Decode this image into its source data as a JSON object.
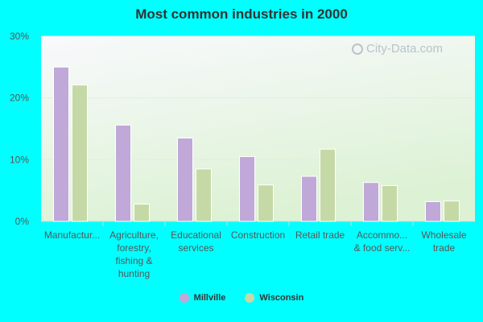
{
  "chart_data": {
    "type": "bar",
    "title": "Most common industries in 2000",
    "categories": [
      [
        "Manufactur..."
      ],
      [
        "Agriculture,",
        "forestry,",
        "fishing &",
        "hunting"
      ],
      [
        "Educational",
        "services"
      ],
      [
        "Construction"
      ],
      [
        "Retail trade"
      ],
      [
        "Accommo...",
        "& food serv..."
      ],
      [
        "Wholesale",
        "trade"
      ]
    ],
    "series": [
      {
        "name": "Millville",
        "values": [
          25.0,
          15.6,
          13.5,
          10.5,
          7.3,
          6.3,
          3.2
        ],
        "color": "#c0a8d8"
      },
      {
        "name": "Wisconsin",
        "values": [
          22.1,
          2.8,
          8.5,
          5.9,
          11.7,
          5.8,
          3.3
        ],
        "color": "#c5d9a6"
      }
    ],
    "ylim": [
      0,
      30
    ],
    "yticks": [
      "0%",
      "10%",
      "20%",
      "30%"
    ],
    "ytick_values": [
      0,
      10,
      20,
      30
    ],
    "grid": true,
    "legend_position": "bottom-center",
    "xlabel": "",
    "ylabel": ""
  },
  "watermark": {
    "text": "City-Data.com",
    "icon": "magnifier-icon"
  },
  "colors": {
    "background": "#00ffff",
    "plot_top": "#f8f9fc",
    "plot_bottom": "#ddf2d5"
  }
}
